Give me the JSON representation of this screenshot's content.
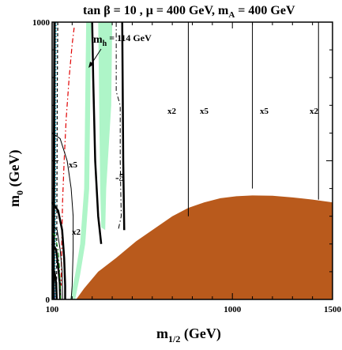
{
  "chart_data": {
    "type": "line",
    "title": "tan β = 10 ,  μ = 400 GeV,  m",
    "title_sub": "A",
    "title_tail": " = 400 GeV",
    "xlabel_main": "m",
    "xlabel_sub": "1/2",
    "xlabel_tail": " (GeV)",
    "ylabel_main": "m",
    "ylabel_sub": "0",
    "ylabel_tail": " (GeV)",
    "xlim": [
      100,
      1500
    ],
    "ylim": [
      0,
      1000
    ],
    "x_tick_labels": [
      {
        "value": 100,
        "label": "100"
      },
      {
        "value": 1000,
        "label": "1000"
      },
      {
        "value": 1500,
        "label": "1500"
      }
    ],
    "y_tick_labels": [
      {
        "value": 0,
        "label": "0"
      },
      {
        "value": 1000,
        "label": "1000"
      }
    ],
    "annotations": {
      "mh_main": "m",
      "mh_sub": "h",
      "mh_value": " = 114 GeV",
      "contour_x2_upper": "x2",
      "contour_x5_upper": "x5",
      "contour_x5_right": "x5",
      "contour_x2_right": "x2",
      "contour_x5_left": "x5",
      "contour_x2_left": "x2",
      "contour_minus5": "-5"
    },
    "regions": {
      "excluded_charged_lsp": {
        "color": "#b95a1c",
        "boundary": [
          [
            220,
            0
          ],
          [
            260,
            40
          ],
          [
            330,
            100
          ],
          [
            420,
            150
          ],
          [
            520,
            210
          ],
          [
            620,
            260
          ],
          [
            700,
            300
          ],
          [
            780,
            330
          ],
          [
            860,
            350
          ],
          [
            940,
            365
          ],
          [
            1020,
            372
          ],
          [
            1100,
            375
          ],
          [
            1200,
            374
          ],
          [
            1300,
            368
          ],
          [
            1400,
            360
          ],
          [
            1500,
            350
          ]
        ]
      },
      "wmap_green_band_left": {
        "color": "#aef5c8",
        "boundary": [
          [
            190,
            0
          ],
          [
            215,
            90
          ],
          [
            240,
            200
          ],
          [
            260,
            400
          ],
          [
            270,
            1000
          ],
          [
            295,
            1000
          ],
          [
            285,
            400
          ],
          [
            265,
            200
          ],
          [
            240,
            90
          ],
          [
            215,
            0
          ]
        ]
      },
      "wmap_green_band_right": {
        "color": "#aef5c8",
        "boundary": [
          [
            330,
            1000
          ],
          [
            335,
            700
          ],
          [
            340,
            400
          ],
          [
            345,
            260
          ],
          [
            365,
            250
          ],
          [
            370,
            400
          ],
          [
            395,
            700
          ],
          [
            400,
            1000
          ]
        ]
      },
      "excluded_blue": {
        "color": "#2020e0",
        "boundary": [
          [
            100,
            0
          ],
          [
            115,
            0
          ],
          [
            112,
            50
          ],
          [
            100,
            70
          ]
        ]
      }
    },
    "lines": [
      {
        "name": "mh_114",
        "style": "dashdot",
        "color": "#e00000",
        "points": [
          [
            210,
            980
          ],
          [
            200,
            920
          ],
          [
            185,
            800
          ],
          [
            170,
            650
          ],
          [
            160,
            500
          ],
          [
            152,
            350
          ],
          [
            148,
            200
          ],
          [
            145,
            50
          ]
        ]
      },
      {
        "name": "chargino_dashed",
        "style": "dashed",
        "color": "#000000",
        "points": [
          [
            128,
            1000
          ],
          [
            126,
            800
          ],
          [
            125,
            600
          ],
          [
            124,
            400
          ],
          [
            123,
            200
          ],
          [
            122,
            0
          ]
        ]
      },
      {
        "name": "bsg_cyan",
        "style": "dotted",
        "color": "#00b0d0",
        "points": [
          [
            120,
            1000
          ],
          [
            119,
            800
          ],
          [
            118,
            600
          ],
          [
            117,
            400
          ],
          [
            116,
            200
          ],
          [
            115,
            0
          ]
        ]
      },
      {
        "name": "thick_left_edge",
        "style": "solid",
        "color": "#000000",
        "width": 3,
        "points": [
          [
            112,
            1000
          ],
          [
            111,
            800
          ],
          [
            110,
            600
          ],
          [
            109,
            400
          ],
          [
            108,
            200
          ],
          [
            107,
            0
          ]
        ]
      },
      {
        "name": "x5_upper",
        "style": "solid",
        "color": "#000000",
        "width": 1,
        "points": [
          [
            780,
            1000
          ],
          [
            780,
            700
          ],
          [
            780,
            300
          ]
        ]
      },
      {
        "name": "x5_upper2",
        "style": "solid",
        "color": "#000000",
        "width": 1,
        "points": [
          [
            1100,
            1000
          ],
          [
            1100,
            700
          ],
          [
            1100,
            400
          ]
        ]
      },
      {
        "name": "x2_right",
        "style": "solid",
        "color": "#000000",
        "width": 1,
        "points": [
          [
            1430,
            1000
          ],
          [
            1430,
            700
          ],
          [
            1430,
            360
          ]
        ]
      },
      {
        "name": "x2_mid",
        "style": "solid",
        "color": "#000000",
        "width": 2.5,
        "points": [
          [
            450,
            1000
          ],
          [
            452,
            800
          ],
          [
            455,
            500
          ],
          [
            460,
            250
          ]
        ]
      },
      {
        "name": "dashdot_mid",
        "style": "dashdot",
        "color": "#000000",
        "width": 1,
        "points": [
          [
            420,
            1000
          ],
          [
            420,
            750
          ],
          [
            440,
            700
          ],
          [
            440,
            500
          ],
          [
            445,
            300
          ],
          [
            430,
            250
          ]
        ]
      },
      {
        "name": "minus5",
        "style": "solid",
        "color": "#000000",
        "width": 2.5,
        "points": [
          [
            300,
            1000
          ],
          [
            305,
            800
          ],
          [
            315,
            500
          ],
          [
            330,
            300
          ],
          [
            345,
            200
          ]
        ]
      },
      {
        "name": "x5_loop",
        "style": "solid",
        "color": "#000000",
        "width": 1,
        "points": [
          [
            100,
            600
          ],
          [
            140,
            580
          ],
          [
            175,
            500
          ],
          [
            195,
            400
          ],
          [
            205,
            300
          ],
          [
            205,
            180
          ],
          [
            200,
            50
          ],
          [
            195,
            0
          ]
        ]
      },
      {
        "name": "inner_thick_1",
        "style": "solid",
        "color": "#000000",
        "width": 2.5,
        "points": [
          [
            100,
            350
          ],
          [
            130,
            320
          ],
          [
            150,
            250
          ],
          [
            160,
            150
          ],
          [
            165,
            50
          ],
          [
            165,
            0
          ]
        ]
      },
      {
        "name": "inner_thin_2",
        "style": "solid",
        "color": "#000000",
        "width": 1,
        "points": [
          [
            100,
            270
          ],
          [
            125,
            250
          ],
          [
            140,
            180
          ],
          [
            150,
            100
          ],
          [
            152,
            0
          ]
        ]
      },
      {
        "name": "inner_thick_3",
        "style": "solid",
        "color": "#000000",
        "width": 2.5,
        "points": [
          [
            100,
            200
          ],
          [
            120,
            180
          ],
          [
            130,
            120
          ],
          [
            138,
            60
          ],
          [
            140,
            0
          ]
        ]
      },
      {
        "name": "inner_dashdot_green",
        "style": "dashdot",
        "color": "#008000",
        "width": 1,
        "points": [
          [
            100,
            240
          ],
          [
            115,
            230
          ],
          [
            130,
            180
          ],
          [
            138,
            100
          ],
          [
            142,
            0
          ]
        ]
      },
      {
        "name": "inner_small",
        "style": "solid",
        "color": "#000000",
        "width": 2.5,
        "points": [
          [
            100,
            110
          ],
          [
            112,
            100
          ],
          [
            120,
            60
          ],
          [
            123,
            0
          ]
        ]
      }
    ]
  }
}
